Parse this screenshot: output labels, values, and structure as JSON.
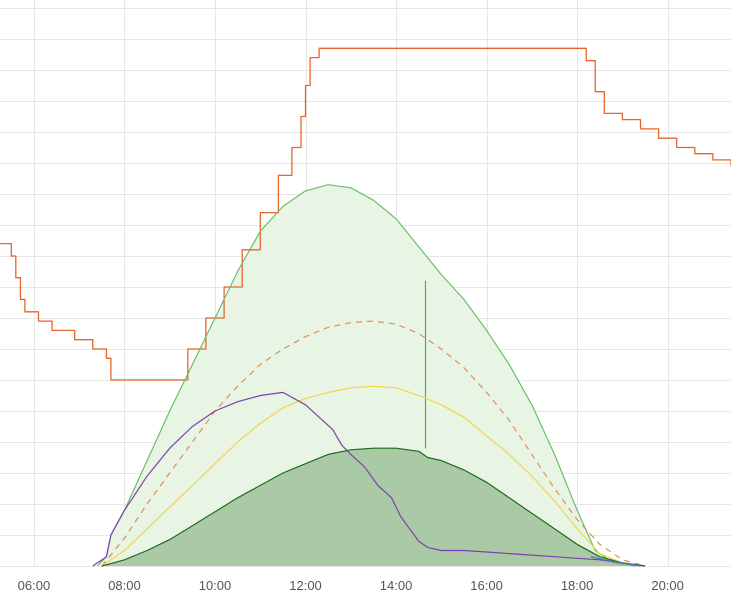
{
  "chart_data": {
    "type": "line",
    "title": "",
    "xlabel": "",
    "ylabel": "",
    "x_unit": "hour",
    "xlim": [
      5.25,
      21.4
    ],
    "ylim": [
      0,
      18
    ],
    "grid": true,
    "legend": "none",
    "x_ticks": [
      {
        "value": 6,
        "label": "06:00"
      },
      {
        "value": 8,
        "label": "08:00"
      },
      {
        "value": 10,
        "label": "10:00"
      },
      {
        "value": 12,
        "label": "12:00"
      },
      {
        "value": 14,
        "label": "14:00"
      },
      {
        "value": 16,
        "label": "16:00"
      },
      {
        "value": 18,
        "label": "18:00"
      },
      {
        "value": 20,
        "label": "20:00"
      }
    ],
    "y_gridlines": [
      0,
      1,
      2,
      3,
      4,
      5,
      6,
      7,
      8,
      9,
      10,
      11,
      12,
      13,
      14,
      15,
      16,
      17,
      18
    ],
    "series": [
      {
        "key": "step_series",
        "color": "#e8662b",
        "style": "step",
        "points": [
          [
            5.25,
            10.4
          ],
          [
            5.45,
            10.4
          ],
          [
            5.5,
            10.0
          ],
          [
            5.6,
            9.3
          ],
          [
            5.7,
            8.6
          ],
          [
            5.8,
            8.2
          ],
          [
            6.1,
            7.9
          ],
          [
            6.4,
            7.6
          ],
          [
            6.9,
            7.3
          ],
          [
            7.3,
            7.0
          ],
          [
            7.6,
            6.7
          ],
          [
            7.7,
            6.0
          ],
          [
            9.05,
            6.0
          ],
          [
            9.4,
            7.0
          ],
          [
            9.8,
            8.0
          ],
          [
            10.2,
            9.0
          ],
          [
            10.6,
            10.2
          ],
          [
            11.0,
            11.4
          ],
          [
            11.4,
            12.6
          ],
          [
            11.7,
            13.5
          ],
          [
            11.9,
            14.5
          ],
          [
            12.0,
            15.5
          ],
          [
            12.1,
            16.4
          ],
          [
            12.3,
            16.7
          ],
          [
            18.0,
            16.7
          ],
          [
            18.2,
            16.3
          ],
          [
            18.4,
            15.3
          ],
          [
            18.6,
            14.6
          ],
          [
            19.0,
            14.4
          ],
          [
            19.4,
            14.1
          ],
          [
            19.8,
            13.8
          ],
          [
            20.2,
            13.5
          ],
          [
            20.6,
            13.3
          ],
          [
            21.0,
            13.1
          ],
          [
            21.4,
            12.9
          ]
        ]
      },
      {
        "key": "green_upper",
        "color": "#6abf69",
        "style": "solid",
        "fill": "#e8f5e4",
        "points": [
          [
            7.4,
            0.0
          ],
          [
            7.6,
            0.3
          ],
          [
            7.7,
            1.0
          ],
          [
            8.0,
            1.8
          ],
          [
            8.5,
            3.4
          ],
          [
            9.0,
            5.0
          ],
          [
            9.5,
            6.5
          ],
          [
            10.0,
            8.0
          ],
          [
            10.5,
            9.5
          ],
          [
            11.0,
            10.8
          ],
          [
            11.5,
            11.6
          ],
          [
            12.0,
            12.1
          ],
          [
            12.5,
            12.3
          ],
          [
            13.0,
            12.2
          ],
          [
            13.5,
            11.8
          ],
          [
            14.0,
            11.2
          ],
          [
            14.5,
            10.3
          ],
          [
            15.0,
            9.4
          ],
          [
            15.5,
            8.6
          ],
          [
            16.0,
            7.6
          ],
          [
            16.5,
            6.5
          ],
          [
            17.0,
            5.2
          ],
          [
            17.5,
            3.6
          ],
          [
            18.0,
            1.8
          ],
          [
            18.4,
            0.5
          ],
          [
            18.8,
            0.1
          ],
          [
            19.3,
            0.0
          ]
        ]
      },
      {
        "key": "green_spike",
        "color": "#4db34d",
        "style": "solid",
        "points": [
          [
            14.65,
            3.8
          ],
          [
            14.65,
            9.2
          ]
        ]
      },
      {
        "key": "orange_dashed",
        "color": "#e09050",
        "style": "dashed",
        "points": [
          [
            7.5,
            0.0
          ],
          [
            8.0,
            0.9
          ],
          [
            8.5,
            2.0
          ],
          [
            9.0,
            3.0
          ],
          [
            9.5,
            4.0
          ],
          [
            10.0,
            5.0
          ],
          [
            10.5,
            5.8
          ],
          [
            11.0,
            6.5
          ],
          [
            11.5,
            7.0
          ],
          [
            12.0,
            7.4
          ],
          [
            12.5,
            7.7
          ],
          [
            13.0,
            7.85
          ],
          [
            13.5,
            7.9
          ],
          [
            14.0,
            7.8
          ],
          [
            14.5,
            7.5
          ],
          [
            15.0,
            7.0
          ],
          [
            15.5,
            6.4
          ],
          [
            16.0,
            5.6
          ],
          [
            16.5,
            4.7
          ],
          [
            17.0,
            3.6
          ],
          [
            17.5,
            2.5
          ],
          [
            18.0,
            1.5
          ],
          [
            18.5,
            0.7
          ],
          [
            19.0,
            0.2
          ],
          [
            19.5,
            0.0
          ]
        ]
      },
      {
        "key": "yellow",
        "color": "#f0d64a",
        "style": "solid",
        "points": [
          [
            7.5,
            0.0
          ],
          [
            8.0,
            0.5
          ],
          [
            8.5,
            1.2
          ],
          [
            9.0,
            1.9
          ],
          [
            9.5,
            2.6
          ],
          [
            10.0,
            3.3
          ],
          [
            10.5,
            4.0
          ],
          [
            11.0,
            4.6
          ],
          [
            11.5,
            5.1
          ],
          [
            12.0,
            5.4
          ],
          [
            12.5,
            5.6
          ],
          [
            13.0,
            5.75
          ],
          [
            13.5,
            5.8
          ],
          [
            14.0,
            5.75
          ],
          [
            14.5,
            5.5
          ],
          [
            15.0,
            5.2
          ],
          [
            15.5,
            4.8
          ],
          [
            16.0,
            4.2
          ],
          [
            16.5,
            3.6
          ],
          [
            17.0,
            2.9
          ],
          [
            17.5,
            2.1
          ],
          [
            18.0,
            1.2
          ],
          [
            18.5,
            0.4
          ],
          [
            19.0,
            0.1
          ],
          [
            19.5,
            0.0
          ]
        ]
      },
      {
        "key": "purple",
        "color": "#7e3fae",
        "style": "solid",
        "points": [
          [
            7.3,
            0.0
          ],
          [
            7.6,
            0.3
          ],
          [
            7.7,
            1.0
          ],
          [
            8.0,
            1.8
          ],
          [
            8.5,
            2.9
          ],
          [
            9.0,
            3.8
          ],
          [
            9.5,
            4.5
          ],
          [
            10.0,
            5.0
          ],
          [
            10.5,
            5.3
          ],
          [
            11.0,
            5.5
          ],
          [
            11.5,
            5.6
          ],
          [
            12.0,
            5.2
          ],
          [
            12.3,
            4.8
          ],
          [
            12.6,
            4.4
          ],
          [
            12.8,
            3.9
          ],
          [
            13.0,
            3.6
          ],
          [
            13.3,
            3.2
          ],
          [
            13.6,
            2.6
          ],
          [
            13.9,
            2.2
          ],
          [
            14.1,
            1.6
          ],
          [
            14.3,
            1.2
          ],
          [
            14.5,
            0.8
          ],
          [
            14.7,
            0.6
          ],
          [
            15.0,
            0.5
          ],
          [
            15.5,
            0.5
          ],
          [
            16.0,
            0.45
          ],
          [
            16.5,
            0.4
          ],
          [
            17.0,
            0.35
          ],
          [
            17.5,
            0.3
          ],
          [
            18.0,
            0.25
          ],
          [
            18.5,
            0.2
          ],
          [
            19.0,
            0.1
          ],
          [
            19.5,
            0.0
          ]
        ]
      },
      {
        "key": "dark_green",
        "color": "#1e6b1e",
        "style": "solid",
        "fill": "#9dc29a",
        "points": [
          [
            7.5,
            0.0
          ],
          [
            8.0,
            0.2
          ],
          [
            8.5,
            0.5
          ],
          [
            9.0,
            0.85
          ],
          [
            9.5,
            1.3
          ],
          [
            10.0,
            1.75
          ],
          [
            10.5,
            2.2
          ],
          [
            11.0,
            2.6
          ],
          [
            11.5,
            3.0
          ],
          [
            12.0,
            3.3
          ],
          [
            12.5,
            3.6
          ],
          [
            13.0,
            3.75
          ],
          [
            13.5,
            3.8
          ],
          [
            14.0,
            3.8
          ],
          [
            14.5,
            3.7
          ],
          [
            14.7,
            3.5
          ],
          [
            15.0,
            3.4
          ],
          [
            15.5,
            3.1
          ],
          [
            16.0,
            2.7
          ],
          [
            16.5,
            2.2
          ],
          [
            17.0,
            1.7
          ],
          [
            17.5,
            1.2
          ],
          [
            18.0,
            0.7
          ],
          [
            18.5,
            0.3
          ],
          [
            19.0,
            0.1
          ],
          [
            19.5,
            0.0
          ]
        ]
      },
      {
        "key": "blue_tail",
        "color": "#4a6fd0",
        "style": "solid",
        "points": [
          [
            18.3,
            0.3
          ],
          [
            18.6,
            0.2
          ],
          [
            19.0,
            0.1
          ],
          [
            19.4,
            0.0
          ]
        ]
      }
    ]
  }
}
